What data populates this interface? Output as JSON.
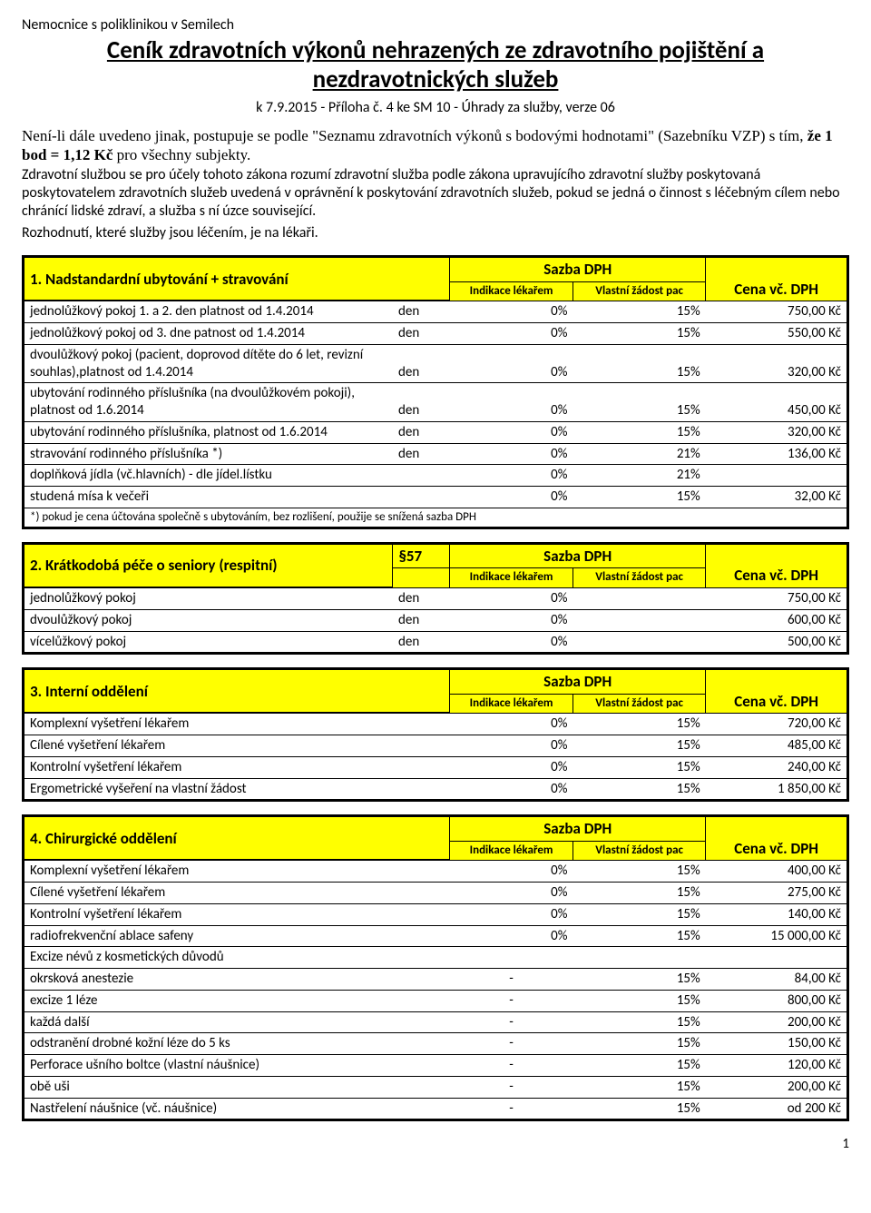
{
  "header": {
    "org": "Nemocnice s poliklinikou v Semilech",
    "title": "Ceník zdravotních výkonů nehrazených ze zdravotního pojištění a nezdravotnických služeb",
    "subline": "k 7.9.2015 - Příloha č. 4 ke SM 10 - Úhrady za služby, verze 06"
  },
  "intro": {
    "p1a": "Není-li dále uvedeno jinak, postupuje se podle \"Seznamu zdravotních výkonů s bodovými hodnotami\" (Sazebníku VZP) s tím, ",
    "p1b": "že 1 bod = 1,12 Kč",
    "p1c": " pro všechny subjekty.",
    "p2": "Zdravotní službou se pro účely tohoto zákona rozumí zdravotní služba podle zákona upravujícího zdravotní služby poskytovaná poskytovatelem zdravotních služeb uvedená v oprávnění k poskytování zdravotních služeb, pokud se jedná o činnost s léčebným cílem nebo chránící lidské zdraví, a služba s ní úzce související.",
    "p3": "Rozhodnutí, které služby jsou léčením, je na lékaři."
  },
  "labels": {
    "sazba": "Sazba DPH",
    "indikace": "Indikace lékařem",
    "vlastni": "Vlastní žádost pac",
    "cena": "Cena vč. DPH"
  },
  "sec1": {
    "title": "1. Nadstandardní ubytování + stravování",
    "rows": [
      {
        "desc": "jednolůžkový pokoj 1. a 2. den platnost od 1.4.2014",
        "unit": "den",
        "ind": "0%",
        "own": "15%",
        "price": "750,00 Kč"
      },
      {
        "desc": "jednolůžkový pokoj od 3. dne patnost od 1.4.2014",
        "unit": "den",
        "ind": "0%",
        "own": "15%",
        "price": "550,00 Kč"
      },
      {
        "desc": "dvoulůžkový pokoj (pacient, doprovod dítěte do 6 let, revizní souhlas),platnost od 1.4.2014",
        "unit": "den",
        "ind": "0%",
        "own": "15%",
        "price": "320,00 Kč"
      },
      {
        "desc": "ubytování rodinného příslušníka (na dvoulůžkovém pokoji), platnost od 1.6.2014",
        "unit": "den",
        "ind": "0%",
        "own": "15%",
        "price": "450,00 Kč"
      },
      {
        "desc": "ubytování rodinného příslušníka, platnost od 1.6.2014",
        "unit": "den",
        "ind": "0%",
        "own": "15%",
        "price": "320,00 Kč"
      },
      {
        "desc": "stravování rodinného příslušníka *)",
        "unit": "den",
        "ind": "0%",
        "own": "21%",
        "price": "136,00 Kč"
      },
      {
        "desc": "doplňková jídla (vč.hlavních) - dle jídel.lístku",
        "unit": "",
        "ind": "0%",
        "own": "21%",
        "price": ""
      },
      {
        "desc": "studená mísa k večeři",
        "unit": "",
        "ind": "0%",
        "own": "15%",
        "price": "32,00 Kč"
      }
    ],
    "note": "*) pokud je cena účtována společně s ubytováním, bez rozlišení, použije se snížená sazba DPH"
  },
  "sec2": {
    "title": "2. Krátkodobá péče o seniory (respitní)",
    "code": "§57",
    "rows": [
      {
        "desc": "jednolůžkový pokoj",
        "unit": "den",
        "ind": "0%",
        "own": "",
        "price": "750,00 Kč"
      },
      {
        "desc": "dvoulůžkový pokoj",
        "unit": "den",
        "ind": "0%",
        "own": "",
        "price": "600,00 Kč"
      },
      {
        "desc": "vícelůžkový pokoj",
        "unit": "den",
        "ind": "0%",
        "own": "",
        "price": "500,00 Kč"
      }
    ]
  },
  "sec3": {
    "title": "3. Interní oddělení",
    "rows": [
      {
        "desc": "Komplexní vyšetření lékařem",
        "unit": "",
        "ind": "0%",
        "own": "15%",
        "price": "720,00 Kč"
      },
      {
        "desc": "Cílené vyšetření lékařem",
        "unit": "",
        "ind": "0%",
        "own": "15%",
        "price": "485,00 Kč"
      },
      {
        "desc": "Kontrolní vyšetření lékařem",
        "unit": "",
        "ind": "0%",
        "own": "15%",
        "price": "240,00 Kč"
      },
      {
        "desc": "Ergometrické vyšeření na vlastní žádost",
        "unit": "",
        "ind": "0%",
        "own": "15%",
        "price": "1 850,00 Kč"
      }
    ]
  },
  "sec4": {
    "title": "4. Chirurgické oddělení",
    "rows": [
      {
        "desc": "Komplexní vyšetření lékařem",
        "unit": "",
        "ind": "0%",
        "own": "15%",
        "price": "400,00 Kč"
      },
      {
        "desc": "Cílené vyšetření lékařem",
        "unit": "",
        "ind": "0%",
        "own": "15%",
        "price": "275,00 Kč"
      },
      {
        "desc": "Kontrolní vyšetření lékařem",
        "unit": "",
        "ind": "0%",
        "own": "15%",
        "price": "140,00 Kč"
      },
      {
        "desc": "radiofrekvenční ablace safeny",
        "unit": "",
        "ind": "0%",
        "own": "15%",
        "price": "15 000,00 Kč"
      },
      {
        "desc": "Excize névů z kosmetických důvodů",
        "unit": "",
        "ind": "",
        "own": "",
        "price": "",
        "noborder": true
      },
      {
        "desc": "okrsková anestezie",
        "unit": "",
        "ind": "-",
        "own": "15%",
        "price": "84,00 Kč"
      },
      {
        "desc": "excize 1 léze",
        "unit": "",
        "ind": "-",
        "own": "15%",
        "price": "800,00 Kč"
      },
      {
        "desc": "každá další",
        "unit": "",
        "ind": "-",
        "own": "15%",
        "price": "200,00 Kč",
        "indent": true
      },
      {
        "desc": "odstranění drobné kožní léze do 5 ks",
        "unit": "",
        "ind": "-",
        "own": "15%",
        "price": "150,00 Kč"
      },
      {
        "desc": "Perforace ušního boltce (vlastní náušnice)",
        "unit": "",
        "ind": "-",
        "own": "15%",
        "price": "120,00 Kč"
      },
      {
        "desc": "obě uši",
        "unit": "",
        "ind": "-",
        "own": "15%",
        "price": "200,00 Kč",
        "indent": true
      },
      {
        "desc": "Nastřelení náušnice (vč. náušnice)",
        "unit": "",
        "ind": "-",
        "own": "15%",
        "price": "od 200 Kč"
      }
    ]
  },
  "pagenum": "1"
}
